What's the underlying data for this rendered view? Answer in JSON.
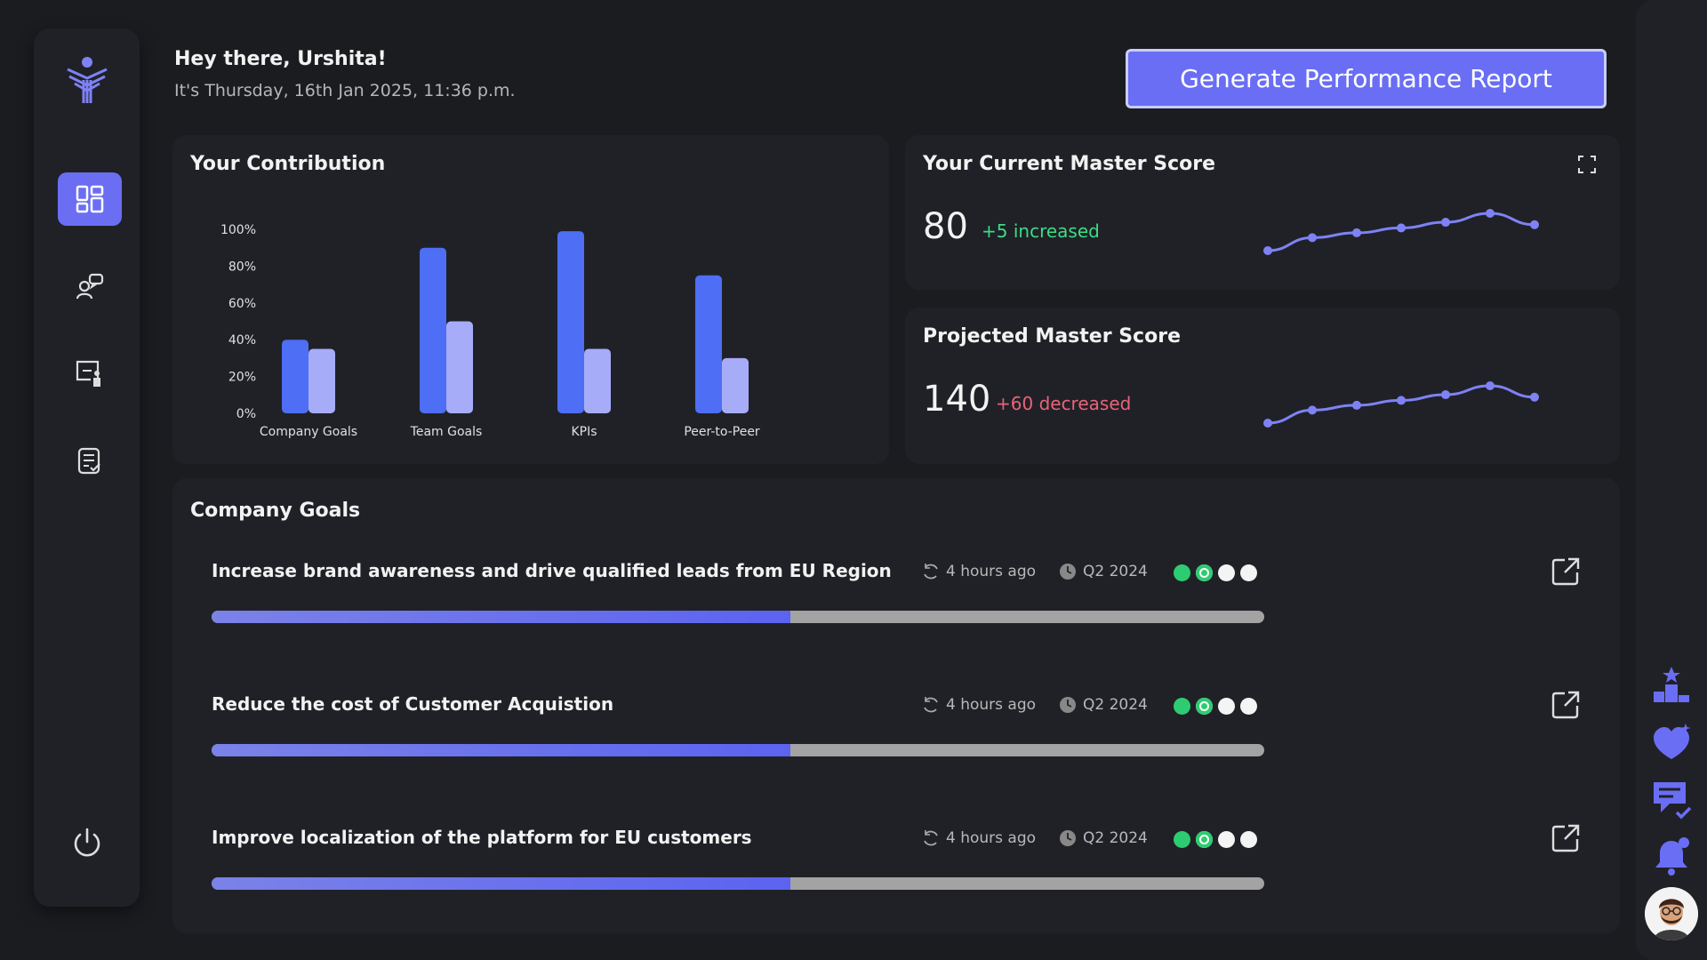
{
  "header": {
    "greeting": "Hey there, Urshita!",
    "date_text": "It's Thursday, 16th Jan 2025, 11:36 p.m.",
    "report_button_label": "Generate Performance Report"
  },
  "sidebar": {
    "items": [
      {
        "name": "dashboard",
        "icon": "dashboard-icon",
        "active": true
      },
      {
        "name": "feedback",
        "icon": "people-chat-icon",
        "active": false
      },
      {
        "name": "training",
        "icon": "presentation-icon",
        "active": false
      },
      {
        "name": "reviews",
        "icon": "checklist-icon",
        "active": false
      }
    ],
    "logout_icon": "power-icon"
  },
  "contribution": {
    "title": "Your Contribution",
    "chart_data": {
      "type": "bar",
      "categories": [
        "Company Goals",
        "Team Goals",
        "KPIs",
        "Peer-to-Peer"
      ],
      "series": [
        {
          "values": [
            40,
            90,
            99,
            75
          ],
          "color": "#4d6ef5"
        },
        {
          "values": [
            35,
            50,
            35,
            30
          ],
          "color": "#a7acf8"
        }
      ],
      "ytick_labels": [
        "0%",
        "20%",
        "40%",
        "60%",
        "80%",
        "100%"
      ],
      "ylim": [
        0,
        100
      ]
    }
  },
  "current_score": {
    "title": "Your Current Master Score",
    "value": "80",
    "delta": "+5 increased",
    "delta_color": "#3ddc84",
    "trend": [
      20,
      36,
      42,
      48,
      55,
      66,
      52
    ]
  },
  "projected_score": {
    "title": "Projected Master Score",
    "value": "140",
    "delta": "+60 decreased",
    "delta_color": "#e86479",
    "trend": [
      20,
      36,
      42,
      48,
      55,
      66,
      52
    ]
  },
  "goals": {
    "title": "Company Goals",
    "items": [
      {
        "title": "Increase brand awareness and drive qualified leads from EU Region",
        "updated": "4 hours ago",
        "quarter": "Q2 2024",
        "progress": 0.55
      },
      {
        "title": "Reduce the cost of Customer Acquistion",
        "updated": "4 hours ago",
        "quarter": "Q2 2024",
        "progress": 0.55
      },
      {
        "title": "Improve localization of the platform for EU customers",
        "updated": "4 hours ago",
        "quarter": "Q2 2024",
        "progress": 0.55
      }
    ]
  },
  "right_rail": {
    "icons": [
      "leaderboard-icon",
      "heart-chat-icon",
      "task-review-icon",
      "notification-bell-icon"
    ],
    "avatar": "user-avatar"
  },
  "colors": {
    "accent": "#6a6ef4",
    "background": "#1b1c20",
    "card": "#202127",
    "trend_line": "#7e82f4"
  }
}
